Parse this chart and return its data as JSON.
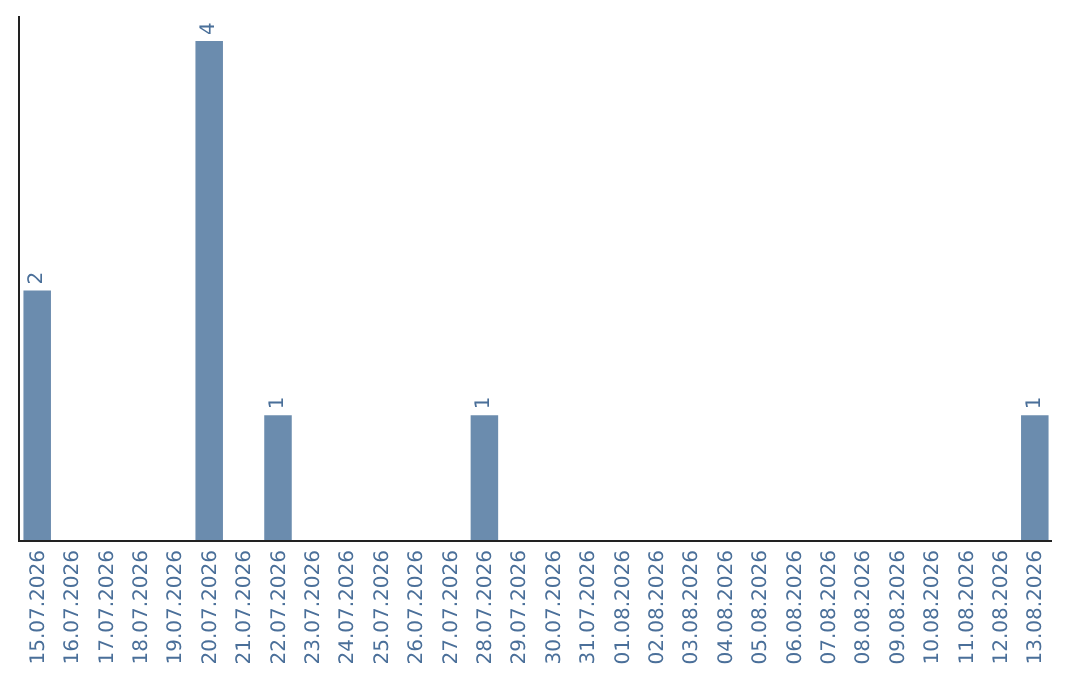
{
  "chart_data": {
    "type": "bar",
    "categories": [
      "15.07.2026",
      "16.07.2026",
      "17.07.2026",
      "18.07.2026",
      "19.07.2026",
      "20.07.2026",
      "21.07.2026",
      "22.07.2026",
      "23.07.2026",
      "24.07.2026",
      "25.07.2026",
      "26.07.2026",
      "27.07.2026",
      "28.07.2026",
      "29.07.2026",
      "30.07.2026",
      "31.07.2026",
      "01.08.2026",
      "02.08.2026",
      "03.08.2026",
      "04.08.2026",
      "05.08.2026",
      "06.08.2026",
      "07.08.2026",
      "08.08.2026",
      "09.08.2026",
      "10.08.2026",
      "11.08.2026",
      "12.08.2026",
      "13.08.2026"
    ],
    "values": [
      2,
      0,
      0,
      0,
      0,
      4,
      0,
      1,
      0,
      0,
      0,
      0,
      0,
      1,
      0,
      0,
      0,
      0,
      0,
      0,
      0,
      0,
      0,
      0,
      0,
      0,
      0,
      0,
      0,
      1
    ],
    "value_labels": [
      "2",
      null,
      null,
      null,
      null,
      "4",
      null,
      "1",
      null,
      null,
      null,
      null,
      null,
      "1",
      null,
      null,
      null,
      null,
      null,
      null,
      null,
      null,
      null,
      null,
      null,
      null,
      null,
      null,
      null,
      "1"
    ],
    "color": "#6b8cae",
    "ylim": [
      0,
      4.2
    ],
    "tick_labels": "x",
    "legend": false
  }
}
